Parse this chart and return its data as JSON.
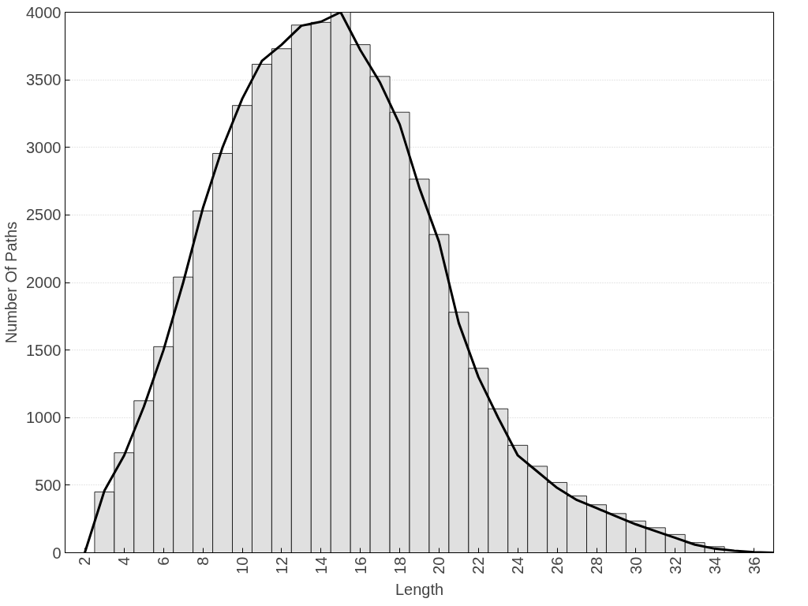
{
  "chart_data": {
    "type": "histogram",
    "xlabel": "Length",
    "ylabel": "Number Of Paths",
    "color": "#e0e0e0",
    "bins": [
      2.5,
      3.5,
      4.5,
      5.5,
      6.5,
      7.5,
      8.5,
      9.5,
      10.5,
      11.5,
      12.5,
      13.5,
      14.5,
      15.5,
      16.5,
      17.5,
      18.5,
      19.5,
      20.5,
      21.5,
      22.5,
      23.5,
      24.5,
      25.5,
      26.5,
      27.5,
      28.5,
      29.5,
      30.5,
      31.5,
      32.5,
      33.5,
      34.5,
      35.5,
      36.5
    ],
    "values": [
      450,
      740,
      1125,
      1525,
      2040,
      2530,
      2955,
      3310,
      3615,
      3730,
      3905,
      3925,
      4000,
      3760,
      3525,
      3260,
      2765,
      2355,
      1780,
      1365,
      1065,
      795,
      640,
      520,
      420,
      355,
      290,
      235,
      185,
      135,
      75,
      45,
      null,
      null
    ],
    "series": [
      {
        "type": "line",
        "color": "#000000",
        "x": [
          2,
          3,
          4,
          5,
          6,
          7,
          8,
          9,
          10,
          11,
          12,
          13,
          14,
          15,
          16,
          17,
          18,
          19,
          20,
          21,
          22,
          23,
          24,
          25,
          26,
          27,
          28,
          29,
          30,
          31,
          32,
          33,
          34,
          35,
          36,
          37
        ],
        "values": [
          0,
          460,
          720,
          1080,
          1500,
          2000,
          2550,
          3000,
          3360,
          3640,
          3760,
          3900,
          3930,
          4000,
          3720,
          3480,
          3170,
          2700,
          2300,
          1700,
          1300,
          1000,
          720,
          600,
          480,
          390,
          330,
          270,
          210,
          160,
          110,
          60,
          30,
          15,
          5,
          0
        ]
      }
    ],
    "xlim": [
      1,
      37
    ],
    "ylim": [
      0,
      4000
    ],
    "xticks": [
      2,
      4,
      6,
      8,
      10,
      12,
      14,
      16,
      18,
      20,
      22,
      24,
      26,
      28,
      30,
      32,
      34,
      36
    ],
    "yticks": [
      0,
      500,
      1000,
      1500,
      2000,
      2500,
      3000,
      3500,
      4000
    ],
    "grid": "y"
  }
}
